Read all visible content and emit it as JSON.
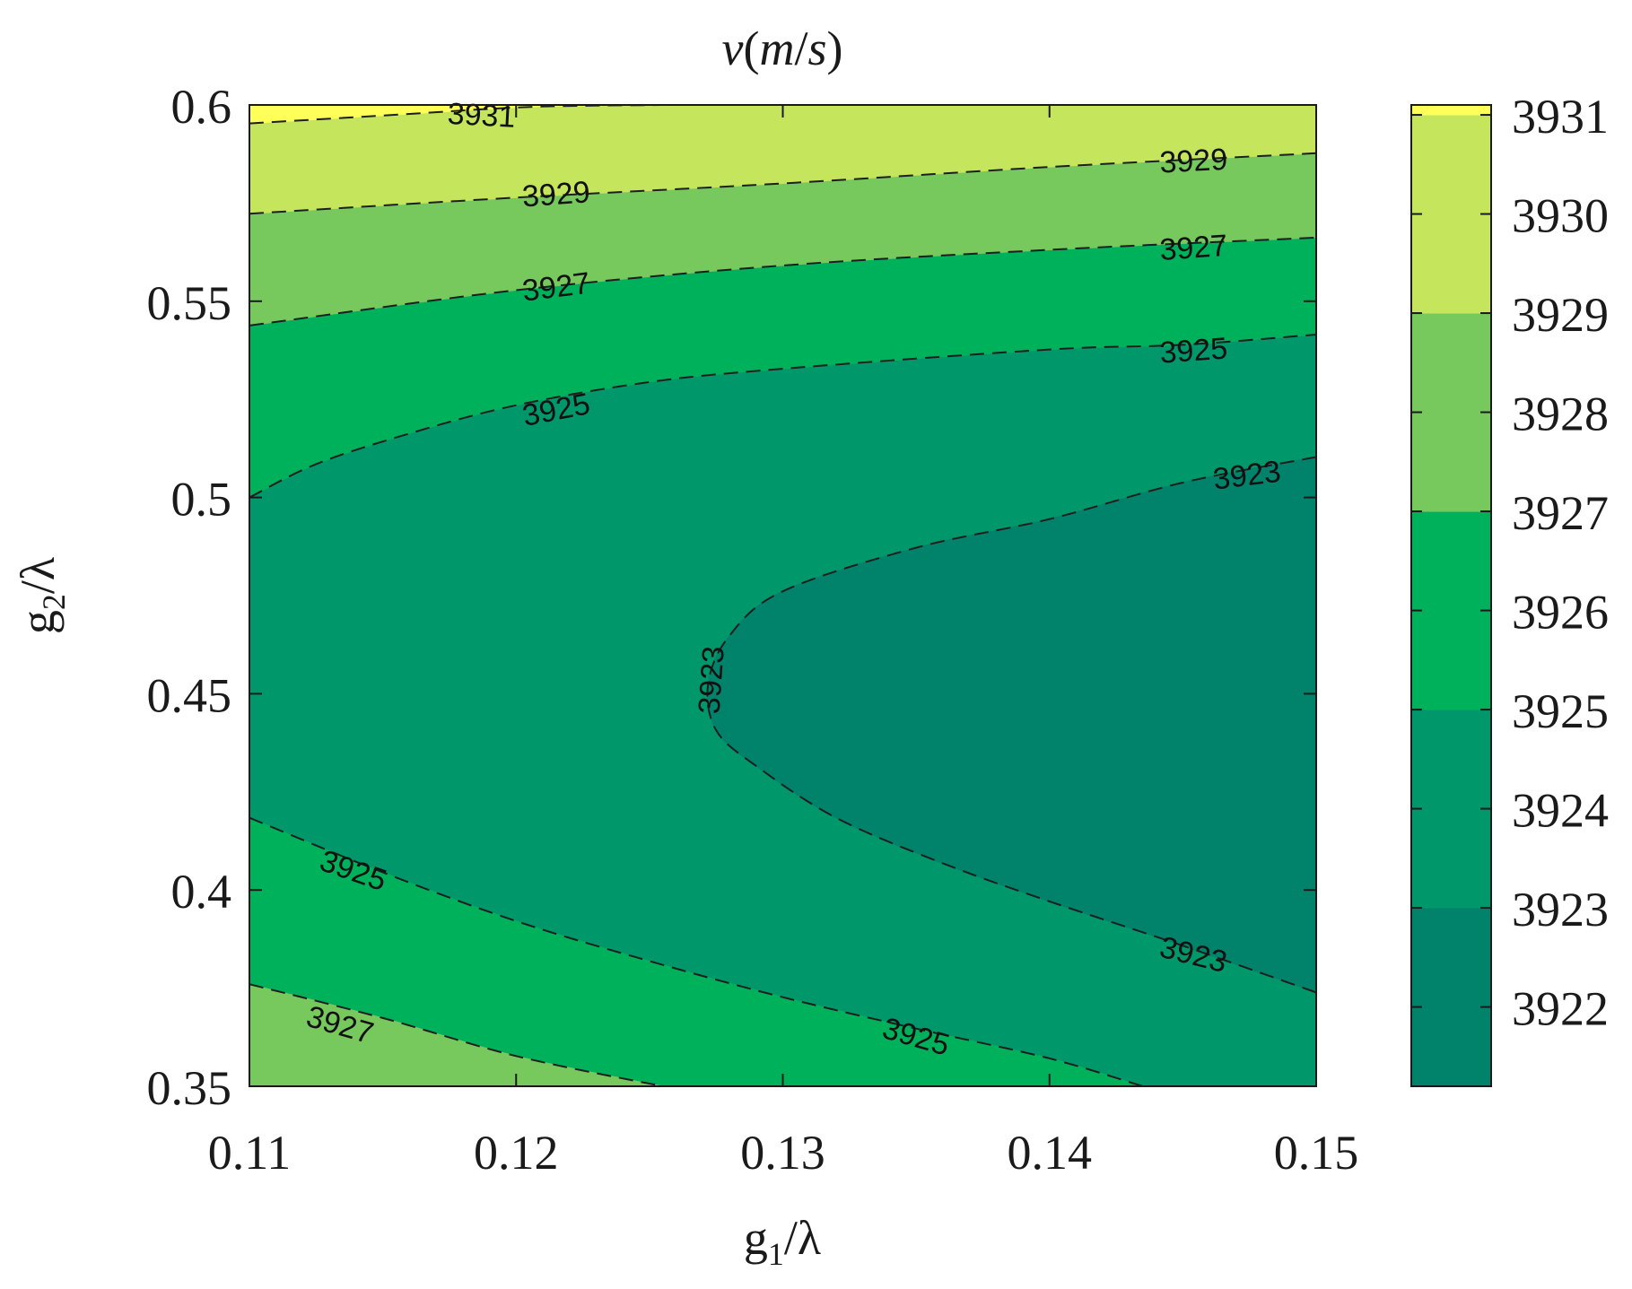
{
  "chart_data": {
    "type": "contour",
    "title": "v(m/s)",
    "title_parts": {
      "symbol": "v",
      "open": "(",
      "num": "m",
      "slash": "/",
      "den": "s",
      "close": ")"
    },
    "xlabel": "g1/λ",
    "ylabel": "g2/λ",
    "xlabel_parts": {
      "base": "g",
      "sub": "1",
      "rest": "/λ"
    },
    "ylabel_parts": {
      "base": "g",
      "sub": "2",
      "rest": "/λ"
    },
    "xlim": [
      0.11,
      0.15
    ],
    "ylim": [
      0.35,
      0.6
    ],
    "xticks": [
      0.11,
      0.12,
      0.13,
      0.14,
      0.15
    ],
    "yticks": [
      0.35,
      0.4,
      0.45,
      0.5,
      0.55,
      0.6
    ],
    "xtick_labels": [
      "0.11",
      "0.12",
      "0.13",
      "0.14",
      "0.15"
    ],
    "ytick_labels": [
      "0.35",
      "0.4",
      "0.45",
      "0.5",
      "0.55",
      "0.6"
    ],
    "colorbar": {
      "range": [
        3921.2,
        3931.1
      ],
      "ticks": [
        3922,
        3923,
        3924,
        3925,
        3926,
        3927,
        3928,
        3929,
        3930,
        3931
      ],
      "tick_labels": [
        "3922",
        "3923",
        "3924",
        "3925",
        "3926",
        "3927",
        "3928",
        "3929",
        "3930",
        "3931"
      ],
      "bands": [
        {
          "from": 3921.2,
          "to": 3923,
          "color": "#00826b"
        },
        {
          "from": 3923,
          "to": 3925,
          "color": "#00976a"
        },
        {
          "from": 3925,
          "to": 3927,
          "color": "#00b15c"
        },
        {
          "from": 3927,
          "to": 3929,
          "color": "#77c95d"
        },
        {
          "from": 3929,
          "to": 3931,
          "color": "#c5e55c"
        },
        {
          "from": 3931,
          "to": 3931.1,
          "color": "#ffff59"
        }
      ]
    },
    "regions": [
      {
        "level": "<3923",
        "color": "#00826b"
      },
      {
        "level": "3923-3925",
        "color": "#00976a"
      },
      {
        "level": "3925-3927",
        "color": "#00b15c"
      },
      {
        "level": "3927-3929",
        "color": "#77c95d"
      },
      {
        "level": "3929-3931",
        "color": "#c5e55c"
      },
      {
        "level": ">3931",
        "color": "#ffff59"
      }
    ],
    "contours": [
      {
        "level": 3931,
        "points": [
          [
            0.11,
            0.5953
          ],
          [
            0.1155,
            0.5975
          ],
          [
            0.1205,
            0.5995
          ],
          [
            0.1255,
            0.6
          ]
        ]
      },
      {
        "level": 3929,
        "points": [
          [
            0.11,
            0.5723
          ],
          [
            0.12,
            0.5764
          ],
          [
            0.13,
            0.58
          ],
          [
            0.14,
            0.5842
          ],
          [
            0.15,
            0.5877
          ]
        ]
      },
      {
        "level": 3927,
        "points": [
          [
            0.11,
            0.5438
          ],
          [
            0.12,
            0.5528
          ],
          [
            0.13,
            0.5591
          ],
          [
            0.14,
            0.5631
          ],
          [
            0.15,
            0.5662
          ]
        ]
      },
      {
        "level": 3925,
        "points": [
          [
            0.11,
            0.5
          ],
          [
            0.1125,
            0.5085
          ],
          [
            0.116,
            0.5163
          ],
          [
            0.12,
            0.5235
          ],
          [
            0.125,
            0.5294
          ],
          [
            0.13,
            0.5328
          ],
          [
            0.14,
            0.5377
          ],
          [
            0.145,
            0.5389
          ],
          [
            0.15,
            0.5415
          ]
        ]
      },
      {
        "level": 3923,
        "points": [
          [
            0.15,
            0.5103
          ],
          [
            0.145,
            0.5038
          ],
          [
            0.14,
            0.4945
          ],
          [
            0.135,
            0.4872
          ],
          [
            0.13,
            0.4761
          ],
          [
            0.128,
            0.4648
          ],
          [
            0.1272,
            0.4526
          ],
          [
            0.1275,
            0.4407
          ],
          [
            0.129,
            0.4316
          ],
          [
            0.132,
            0.4184
          ],
          [
            0.136,
            0.4068
          ],
          [
            0.14,
            0.3971
          ],
          [
            0.145,
            0.3858
          ],
          [
            0.15,
            0.3739
          ]
        ]
      },
      {
        "level": 3925,
        "points": [
          [
            0.11,
            0.4184
          ],
          [
            0.115,
            0.4045
          ],
          [
            0.12,
            0.3921
          ],
          [
            0.125,
            0.3819
          ],
          [
            0.13,
            0.3727
          ],
          [
            0.135,
            0.3647
          ],
          [
            0.14,
            0.3571
          ],
          [
            0.1435,
            0.35
          ]
        ]
      },
      {
        "level": 3927,
        "points": [
          [
            0.11,
            0.376
          ],
          [
            0.115,
            0.3674
          ],
          [
            0.12,
            0.3577
          ],
          [
            0.1255,
            0.35
          ]
        ]
      }
    ],
    "contour_labels": [
      {
        "text": "3931",
        "x": 0.1187,
        "y": 0.5975,
        "angle": 3
      },
      {
        "text": "3929",
        "x": 0.1215,
        "y": 0.5774,
        "angle": -4
      },
      {
        "text": "3929",
        "x": 0.1454,
        "y": 0.5859,
        "angle": -3
      },
      {
        "text": "3927",
        "x": 0.1215,
        "y": 0.5538,
        "angle": -7
      },
      {
        "text": "3927",
        "x": 0.1454,
        "y": 0.5638,
        "angle": -4
      },
      {
        "text": "3925",
        "x": 0.1215,
        "y": 0.5225,
        "angle": -11
      },
      {
        "text": "3925",
        "x": 0.1454,
        "y": 0.5376,
        "angle": -4
      },
      {
        "text": "3923",
        "x": 0.1474,
        "y": 0.5058,
        "angle": -7
      },
      {
        "text": "3923",
        "x": 0.1273,
        "y": 0.4535,
        "angle": -86
      },
      {
        "text": "3923",
        "x": 0.1454,
        "y": 0.3837,
        "angle": 14
      },
      {
        "text": "3925",
        "x": 0.1139,
        "y": 0.4051,
        "angle": 19
      },
      {
        "text": "3925",
        "x": 0.135,
        "y": 0.3628,
        "angle": 16
      },
      {
        "text": "3927",
        "x": 0.1134,
        "y": 0.3658,
        "angle": 16
      }
    ]
  }
}
